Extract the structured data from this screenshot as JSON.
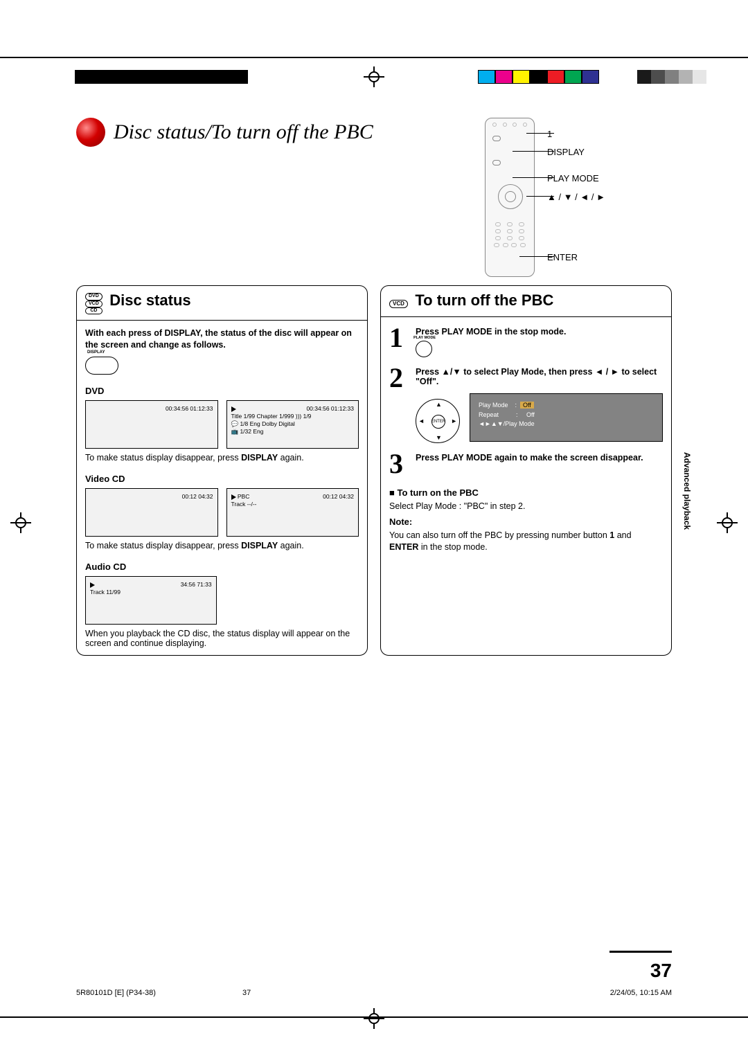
{
  "colors": {
    "red_pill_highlight": "#ff8b8b",
    "red_pill_mid": "#d20000",
    "red_pill_dark": "#8a0000",
    "screen_bg": "#f2f2f2",
    "osd_bg": "#838383",
    "osd_text": "#ffffff",
    "osd_highlight": "#d8a94a",
    "swatches": [
      "#00aeef",
      "#ec008c",
      "#fff200",
      "#000000",
      "#ed1c24",
      "#00a651",
      "#2e3192"
    ],
    "grays": [
      "#1a1a1a",
      "#4d4d4d",
      "#808080",
      "#b3b3b3",
      "#e6e6e6"
    ]
  },
  "title": "Disc status/To turn off the PBC",
  "remote": {
    "labels": {
      "one": "1",
      "display": "DISPLAY",
      "play_mode": "PLAY MODE",
      "arrows": "▲ / ▼ / ◄ / ►",
      "enter": "ENTER"
    }
  },
  "left": {
    "badges": [
      "DVD",
      "VCD",
      "CD"
    ],
    "heading": "Disc status",
    "intro": "With each press of DISPLAY, the status of the disc will appear on the screen and change as follows.",
    "display_btn": "DISPLAY",
    "dvd": {
      "label": "DVD",
      "screen1": {
        "time": "00:34:56  01:12:33"
      },
      "screen2": {
        "time": "00:34:56  01:12:33",
        "line1": "Title     1/99   Chapter  1/999   ))) 1/9",
        "line2": "💬 1/8  Eng Dolby Digital",
        "line3": "📺 1/32 Eng"
      },
      "caption_a": "To make status display disappear, press ",
      "caption_b": "DISPLAY",
      "caption_c": " again."
    },
    "vcd": {
      "label": "Video CD",
      "screen1": {
        "time": "00:12     04:32"
      },
      "screen2": {
        "time": "00:12     04:32",
        "line1": "PBC",
        "line2": "Track   --/--"
      },
      "caption_a": "To make status display disappear, press ",
      "caption_b": "DISPLAY",
      "caption_c": " again."
    },
    "cd": {
      "label": "Audio CD",
      "screen": {
        "time": "34:56    71:33",
        "line1": "Track 11/99"
      },
      "caption": "When you playback the CD disc, the status display will appear on the screen and continue displaying."
    }
  },
  "right": {
    "badge": "VCD",
    "heading": "To turn off the PBC",
    "step1": {
      "text": "Press PLAY MODE in the stop mode.",
      "btn": "PLAY MODE"
    },
    "step2": {
      "text_a": "Press ▲/▼ to select Play Mode, then press ◄ / ► to select \"Off\".",
      "enter": "ENTER",
      "osd": {
        "pm_label": "Play Mode",
        "pm_value": "Off",
        "rp_label": "Repeat",
        "rp_value": "Off",
        "hint": "◄►▲▼/Play Mode"
      }
    },
    "step3": {
      "text": "Press PLAY MODE again to make the screen disappear."
    },
    "turn_on_head": "■ To turn on the PBC",
    "turn_on_text": "Select Play Mode : \"PBC\" in step 2.",
    "note_head": "Note:",
    "note_a": "You can also turn off the PBC by pressing number button ",
    "note_b": "1",
    "note_c": " and ",
    "note_d": "ENTER",
    "note_e": " in the stop mode."
  },
  "side_tab": "Advanced playback",
  "page_number": "37",
  "footer": {
    "left": "5R80101D [E] (P34-38)",
    "mid": "37",
    "right": "2/24/05, 10:15 AM"
  }
}
